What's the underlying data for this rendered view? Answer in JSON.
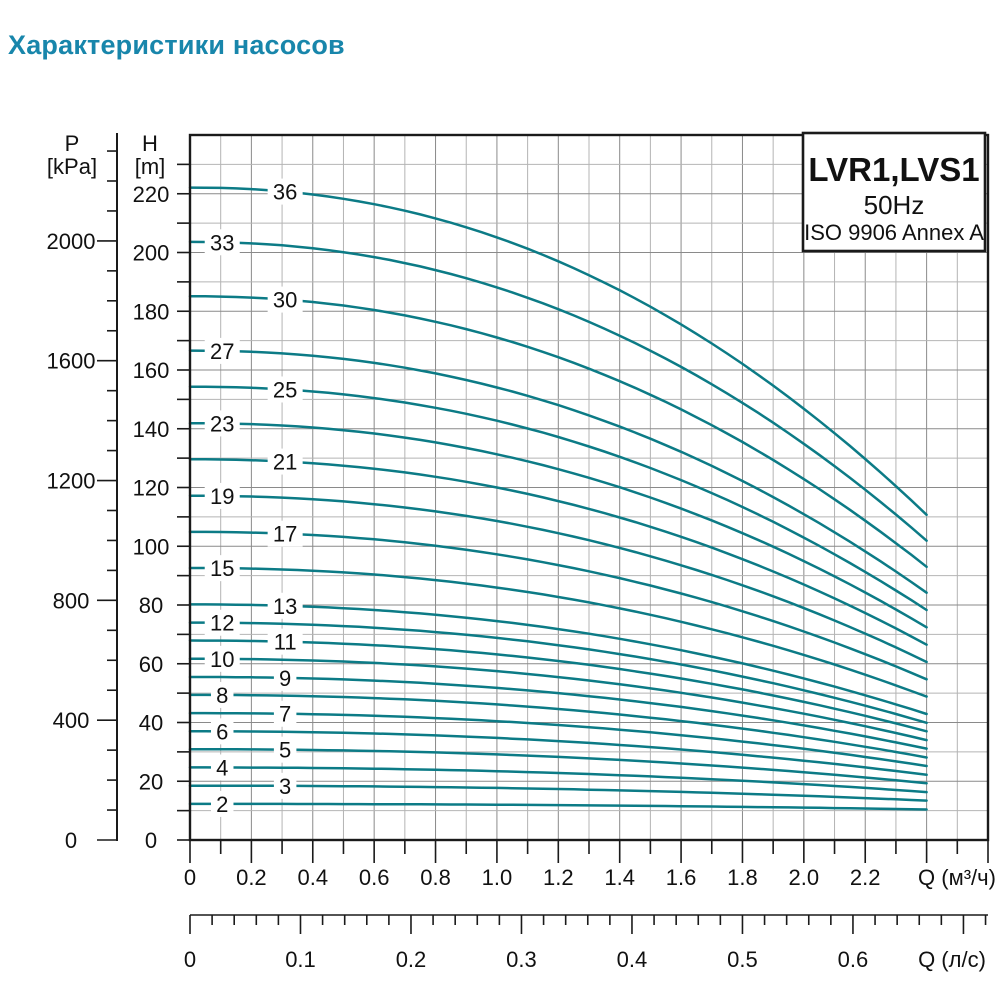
{
  "page_title": "Характеристики насосов",
  "colors": {
    "title_accent": "#1886ab",
    "curve": "#0c7b86",
    "axis": "#1a1a1a",
    "grid_minor": "#b4b4b4",
    "grid_major": "#8a8a8a"
  },
  "chart_data": {
    "type": "line",
    "legend": {
      "model": "LVR1,LVS1",
      "frequency": "50Hz",
      "standard": "ISO 9906 Annex A"
    },
    "p_axis": {
      "label": "P",
      "unit": "[kPa]",
      "tick_labels": [
        "0",
        "400",
        "800",
        "1200",
        "1600",
        "2000"
      ],
      "major_step_kpa": 400,
      "minor_step_kpa": 100,
      "range_kpa": [
        0,
        2350
      ]
    },
    "h_axis": {
      "label": "H",
      "unit": "[m]",
      "tick_labels": [
        "0",
        "20",
        "40",
        "60",
        "80",
        "100",
        "120",
        "140",
        "160",
        "180",
        "200",
        "220"
      ],
      "major_step_m": 20,
      "minor_step_m": 10,
      "range_m": [
        0,
        240
      ]
    },
    "q_m3h_axis": {
      "axis_label": "Q (м³/ч)",
      "tick_labels": [
        "0",
        "0.2",
        "0.4",
        "0.6",
        "0.8",
        "1.0",
        "1.2",
        "1.4",
        "1.6",
        "1.8",
        "2.0",
        "2.2"
      ],
      "major_step": 0.2,
      "minor_step": 0.1,
      "range": [
        0,
        2.6
      ]
    },
    "q_ls_axis": {
      "axis_label": "Q (л/с)",
      "tick_labels": [
        "0",
        "0.1",
        "0.2",
        "0.3",
        "0.4",
        "0.5",
        "0.6"
      ],
      "major_step": 0.1,
      "minor_step": 0.02,
      "range": [
        0,
        0.72
      ]
    },
    "grid": "on",
    "q_end_m3h": 2.4,
    "series": [
      {
        "stages": 36,
        "start_head_m": 222.1,
        "end_head_m": 110.7,
        "label_q": 0.31
      },
      {
        "stages": 33,
        "start_head_m": 203.6,
        "end_head_m": 101.9,
        "label_q": 0.105
      },
      {
        "stages": 30,
        "start_head_m": 185.1,
        "end_head_m": 93.0,
        "label_q": 0.31
      },
      {
        "stages": 27,
        "start_head_m": 166.6,
        "end_head_m": 84.2,
        "label_q": 0.105
      },
      {
        "stages": 25,
        "start_head_m": 154.3,
        "end_head_m": 78.3,
        "label_q": 0.31
      },
      {
        "stages": 23,
        "start_head_m": 141.9,
        "end_head_m": 72.4,
        "label_q": 0.105
      },
      {
        "stages": 21,
        "start_head_m": 129.6,
        "end_head_m": 66.5,
        "label_q": 0.31
      },
      {
        "stages": 19,
        "start_head_m": 117.2,
        "end_head_m": 60.6,
        "label_q": 0.105
      },
      {
        "stages": 17,
        "start_head_m": 104.9,
        "end_head_m": 54.7,
        "label_q": 0.31
      },
      {
        "stages": 15,
        "start_head_m": 92.6,
        "end_head_m": 48.8,
        "label_q": 0.105
      },
      {
        "stages": 13,
        "start_head_m": 80.2,
        "end_head_m": 42.9,
        "label_q": 0.31
      },
      {
        "stages": 12,
        "start_head_m": 74.0,
        "end_head_m": 39.9,
        "label_q": 0.105
      },
      {
        "stages": 11,
        "start_head_m": 67.9,
        "end_head_m": 37.0,
        "label_q": 0.31
      },
      {
        "stages": 10,
        "start_head_m": 61.7,
        "end_head_m": 34.0,
        "label_q": 0.105
      },
      {
        "stages": 9,
        "start_head_m": 55.5,
        "end_head_m": 31.1,
        "label_q": 0.31
      },
      {
        "stages": 8,
        "start_head_m": 49.4,
        "end_head_m": 28.1,
        "label_q": 0.105
      },
      {
        "stages": 7,
        "start_head_m": 43.2,
        "end_head_m": 25.2,
        "label_q": 0.31
      },
      {
        "stages": 6,
        "start_head_m": 37.0,
        "end_head_m": 22.2,
        "label_q": 0.105
      },
      {
        "stages": 5,
        "start_head_m": 30.9,
        "end_head_m": 19.3,
        "label_q": 0.31
      },
      {
        "stages": 4,
        "start_head_m": 24.7,
        "end_head_m": 16.3,
        "label_q": 0.105
      },
      {
        "stages": 3,
        "start_head_m": 18.5,
        "end_head_m": 13.4,
        "label_q": 0.31
      },
      {
        "stages": 2,
        "start_head_m": 12.3,
        "end_head_m": 10.4,
        "label_q": 0.105
      }
    ]
  }
}
